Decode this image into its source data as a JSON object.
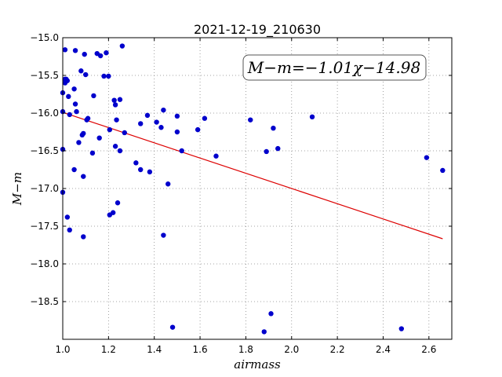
{
  "chart_data": {
    "type": "scatter",
    "title": "2021-12-19_210630",
    "xlabel": "airmass",
    "ylabel": "M−m",
    "xlim": [
      1.0,
      2.7
    ],
    "ylim": [
      -15.0,
      -19.0
    ],
    "y_inverted": true,
    "grid": true,
    "x_ticks": [
      "1.0",
      "1.2",
      "1.4",
      "1.6",
      "1.8",
      "2.0",
      "2.2",
      "2.4",
      "2.6"
    ],
    "y_ticks": [
      "−15.0",
      "−15.5",
      "−16.0",
      "−16.5",
      "−17.0",
      "−17.5",
      "−18.0",
      "−18.5"
    ],
    "annotation": "M−m=−1.01χ−14.98",
    "colors": {
      "points": "#0000cc",
      "fit_line": "#dd0000",
      "grid": "#888888"
    },
    "fit_line": {
      "slope": -1.01,
      "intercept": -14.98,
      "x_range": [
        1.0,
        2.66
      ]
    },
    "series": [
      {
        "points": [
          [
            1.0,
            -15.73
          ],
          [
            1.0,
            -15.98
          ],
          [
            1.0,
            -16.48
          ],
          [
            1.0,
            -17.05
          ],
          [
            1.01,
            -15.16
          ],
          [
            1.01,
            -15.55
          ],
          [
            1.01,
            -15.6
          ],
          [
            1.015,
            -15.55
          ],
          [
            1.02,
            -15.57
          ],
          [
            1.02,
            -17.38
          ],
          [
            1.025,
            -15.78
          ],
          [
            1.03,
            -16.02
          ],
          [
            1.03,
            -17.55
          ],
          [
            1.05,
            -15.68
          ],
          [
            1.05,
            -16.75
          ],
          [
            1.055,
            -15.17
          ],
          [
            1.055,
            -15.88
          ],
          [
            1.06,
            -15.98
          ],
          [
            1.07,
            -16.39
          ],
          [
            1.08,
            -15.44
          ],
          [
            1.085,
            -16.29
          ],
          [
            1.09,
            -16.27
          ],
          [
            1.09,
            -16.84
          ],
          [
            1.09,
            -17.64
          ],
          [
            1.095,
            -15.22
          ],
          [
            1.1,
            -15.49
          ],
          [
            1.105,
            -16.09
          ],
          [
            1.11,
            -16.07
          ],
          [
            1.13,
            -16.53
          ],
          [
            1.135,
            -15.77
          ],
          [
            1.15,
            -15.21
          ],
          [
            1.16,
            -16.33
          ],
          [
            1.165,
            -15.24
          ],
          [
            1.18,
            -15.51
          ],
          [
            1.19,
            -15.2
          ],
          [
            1.2,
            -15.51
          ],
          [
            1.205,
            -16.22
          ],
          [
            1.205,
            -17.35
          ],
          [
            1.22,
            -17.32
          ],
          [
            1.225,
            -15.83
          ],
          [
            1.23,
            -15.89
          ],
          [
            1.23,
            -16.44
          ],
          [
            1.235,
            -16.09
          ],
          [
            1.24,
            -17.19
          ],
          [
            1.25,
            -15.82
          ],
          [
            1.25,
            -16.5
          ],
          [
            1.26,
            -15.11
          ],
          [
            1.27,
            -16.26
          ],
          [
            1.32,
            -16.66
          ],
          [
            1.34,
            -16.14
          ],
          [
            1.34,
            -16.75
          ],
          [
            1.37,
            -16.03
          ],
          [
            1.38,
            -16.78
          ],
          [
            1.41,
            -16.12
          ],
          [
            1.43,
            -16.19
          ],
          [
            1.44,
            -15.96
          ],
          [
            1.44,
            -17.62
          ],
          [
            1.46,
            -16.94
          ],
          [
            1.48,
            -18.84
          ],
          [
            1.5,
            -16.04
          ],
          [
            1.5,
            -16.25
          ],
          [
            1.52,
            -16.5
          ],
          [
            1.59,
            -16.22
          ],
          [
            1.62,
            -16.07
          ],
          [
            1.67,
            -16.57
          ],
          [
            1.82,
            -16.09
          ],
          [
            1.88,
            -18.9
          ],
          [
            1.89,
            -16.51
          ],
          [
            1.91,
            -18.66
          ],
          [
            1.92,
            -16.2
          ],
          [
            1.94,
            -16.47
          ],
          [
            2.09,
            -16.05
          ],
          [
            2.48,
            -18.86
          ],
          [
            2.59,
            -16.59
          ],
          [
            2.66,
            -16.76
          ]
        ]
      }
    ]
  }
}
